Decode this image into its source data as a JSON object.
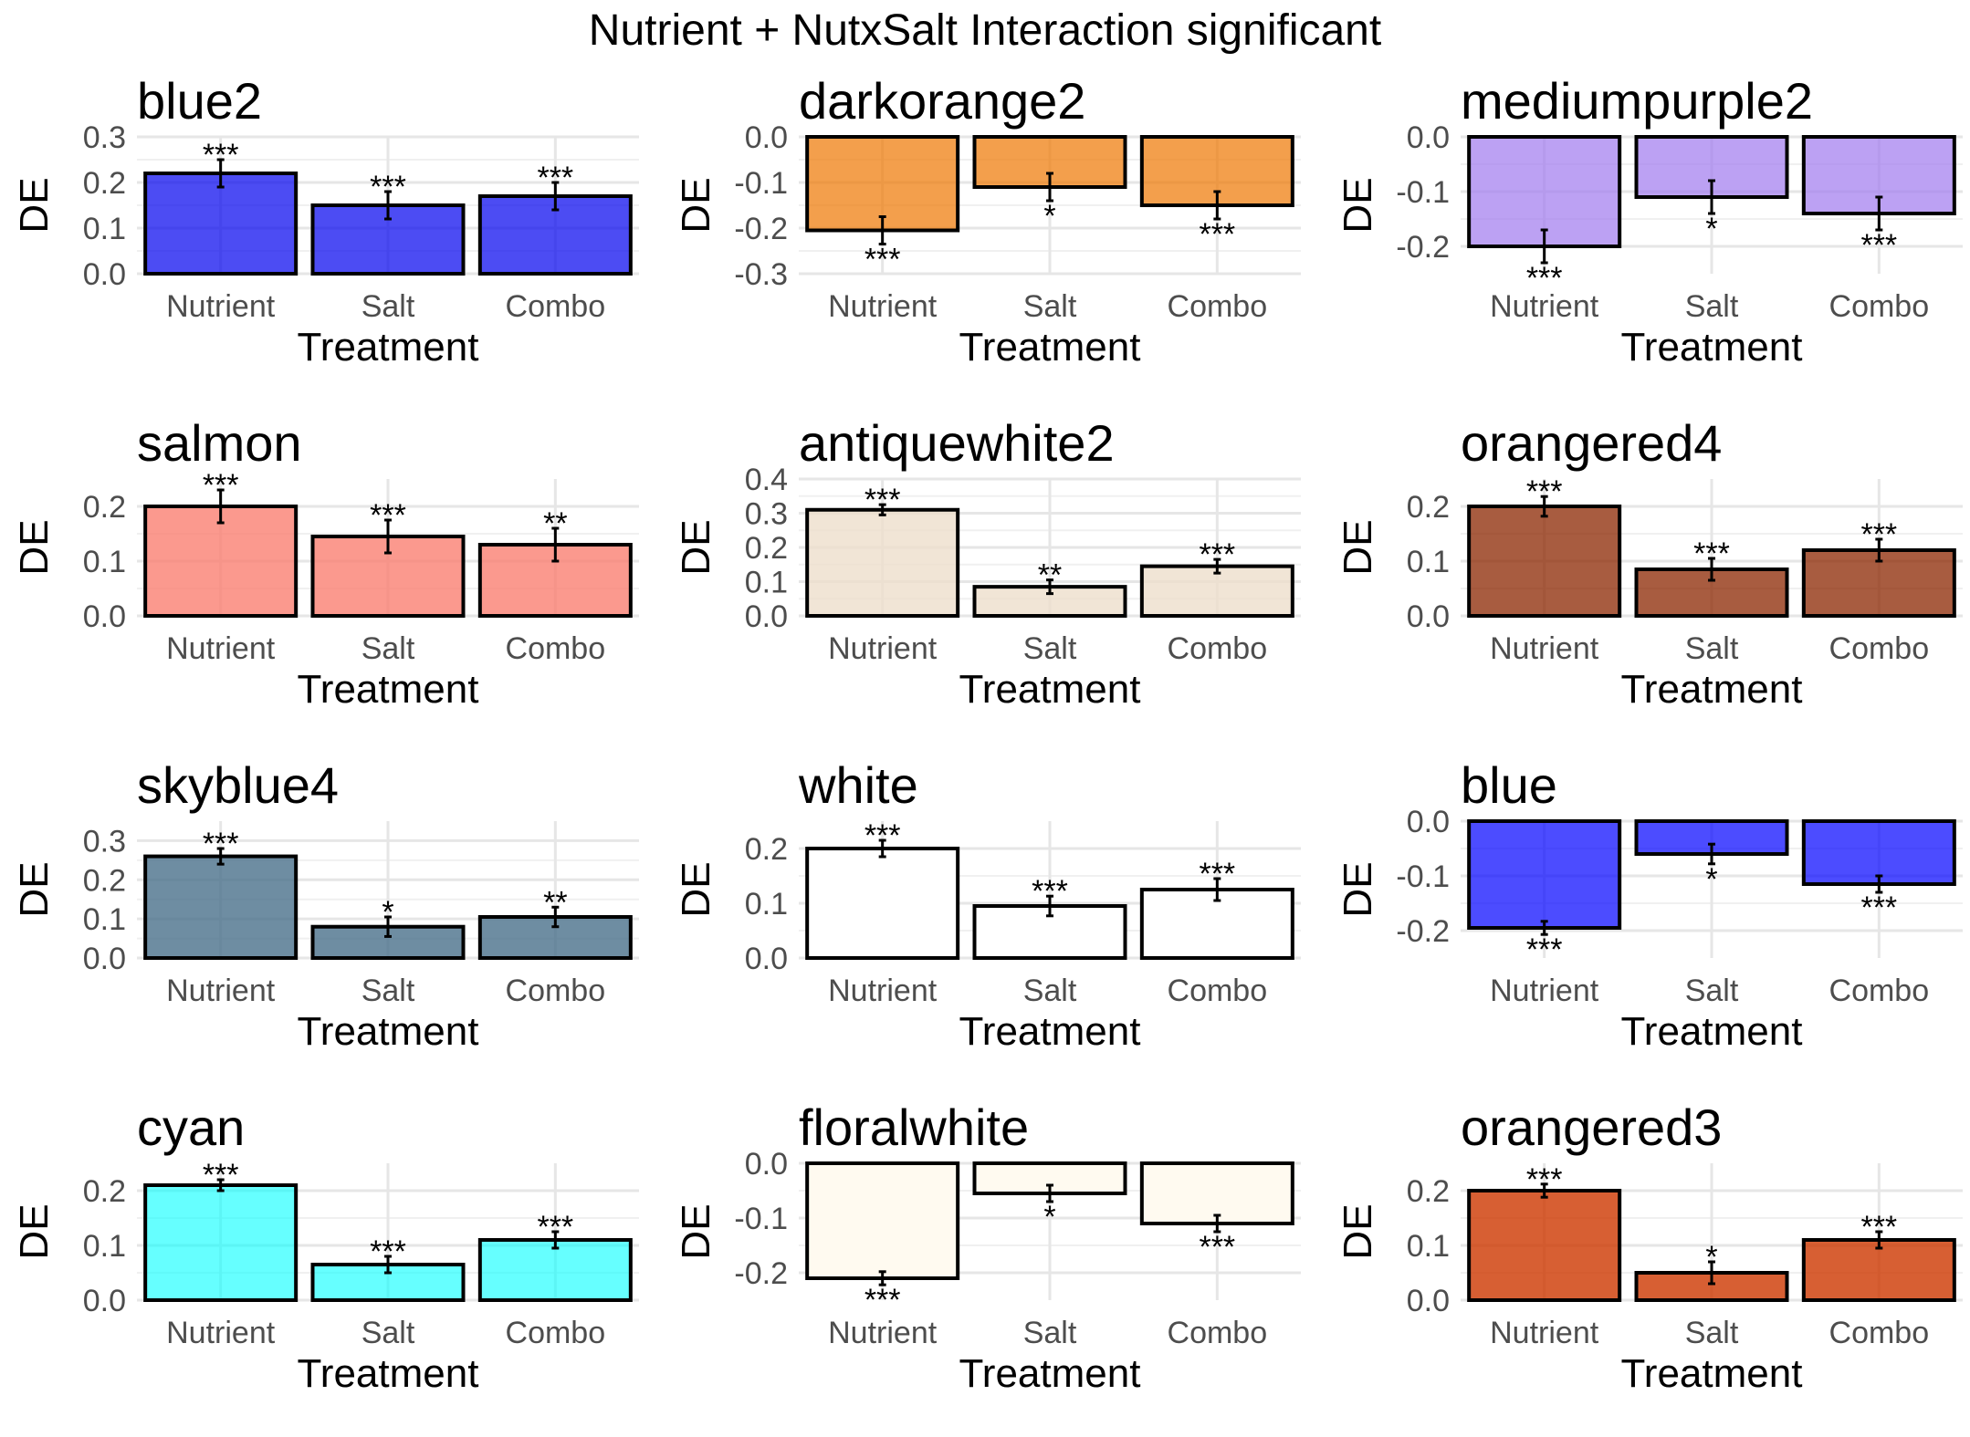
{
  "figure": {
    "title": "Nutrient + NutxSalt Interaction significant"
  },
  "chart_data": [
    {
      "type": "bar",
      "title": "blue2",
      "color": "#0000EE",
      "alpha": 0.7,
      "categories": [
        "Nutrient",
        "Salt",
        "Combo"
      ],
      "values": [
        0.22,
        0.15,
        0.17
      ],
      "errors": [
        0.03,
        0.03,
        0.03
      ],
      "significance": [
        "***",
        "***",
        "***"
      ],
      "xlabel": "Treatment",
      "ylabel": "DE",
      "ylim": [
        0,
        0.3
      ],
      "ticks": [
        0,
        0.1,
        0.2,
        0.3
      ],
      "tick_labels": [
        "0.0",
        "0.1",
        "0.2",
        "0.3"
      ]
    },
    {
      "type": "bar",
      "title": "darkorange2",
      "color": "#EE7600",
      "alpha": 0.7,
      "categories": [
        "Nutrient",
        "Salt",
        "Combo"
      ],
      "values": [
        -0.205,
        -0.11,
        -0.15
      ],
      "errors": [
        0.03,
        0.03,
        0.03
      ],
      "significance": [
        "***",
        "*",
        "***"
      ],
      "xlabel": "Treatment",
      "ylabel": "DE",
      "ylim": [
        -0.3,
        0.0
      ],
      "ticks": [
        0,
        -0.1,
        -0.2,
        -0.3
      ],
      "tick_labels": [
        "0.0",
        "-0.1",
        "-0.2",
        "-0.3"
      ]
    },
    {
      "type": "bar",
      "title": "mediumpurple2",
      "color": "#9F79EE",
      "alpha": 0.7,
      "categories": [
        "Nutrient",
        "Salt",
        "Combo"
      ],
      "values": [
        -0.2,
        -0.11,
        -0.14
      ],
      "errors": [
        0.03,
        0.03,
        0.03
      ],
      "significance": [
        "***",
        "*",
        "***"
      ],
      "xlabel": "Treatment",
      "ylabel": "DE",
      "ylim": [
        -0.25,
        0.0
      ],
      "ticks": [
        0,
        -0.1,
        -0.2
      ],
      "tick_labels": [
        "0.0",
        "-0.1",
        "-0.2"
      ]
    },
    {
      "type": "bar",
      "title": "salmon",
      "color": "#FA8072",
      "alpha": 0.8,
      "categories": [
        "Nutrient",
        "Salt",
        "Combo"
      ],
      "values": [
        0.2,
        0.145,
        0.13
      ],
      "errors": [
        0.03,
        0.03,
        0.03
      ],
      "significance": [
        "***",
        "***",
        "**"
      ],
      "xlabel": "Treatment",
      "ylabel": "DE",
      "ylim": [
        0,
        0.25
      ],
      "ticks": [
        0,
        0.1,
        0.2
      ],
      "tick_labels": [
        "0.0",
        "0.1",
        "0.2"
      ]
    },
    {
      "type": "bar",
      "title": "antiquewhite2",
      "color": "#EEDFCC",
      "alpha": 0.8,
      "categories": [
        "Nutrient",
        "Salt",
        "Combo"
      ],
      "values": [
        0.31,
        0.085,
        0.145
      ],
      "errors": [
        0.015,
        0.02,
        0.02
      ],
      "significance": [
        "***",
        "**",
        "***"
      ],
      "xlabel": "Treatment",
      "ylabel": "DE",
      "ylim": [
        0,
        0.4
      ],
      "ticks": [
        0,
        0.1,
        0.2,
        0.3,
        0.4
      ],
      "tick_labels": [
        "0.0",
        "0.1",
        "0.2",
        "0.3",
        "0.4"
      ]
    },
    {
      "type": "bar",
      "title": "orangered4",
      "color": "#8B2500",
      "alpha": 0.75,
      "categories": [
        "Nutrient",
        "Salt",
        "Combo"
      ],
      "values": [
        0.2,
        0.085,
        0.12
      ],
      "errors": [
        0.018,
        0.02,
        0.02
      ],
      "significance": [
        "***",
        "***",
        "***"
      ],
      "xlabel": "Treatment",
      "ylabel": "DE",
      "ylim": [
        0,
        0.25
      ],
      "ticks": [
        0,
        0.1,
        0.2
      ],
      "tick_labels": [
        "0.0",
        "0.1",
        "0.2"
      ]
    },
    {
      "type": "bar",
      "title": "skyblue4",
      "color": "#4A708B",
      "alpha": 0.8,
      "categories": [
        "Nutrient",
        "Salt",
        "Combo"
      ],
      "values": [
        0.26,
        0.08,
        0.105
      ],
      "errors": [
        0.02,
        0.025,
        0.025
      ],
      "significance": [
        "***",
        "*",
        "**"
      ],
      "xlabel": "Treatment",
      "ylabel": "DE",
      "ylim": [
        0,
        0.35
      ],
      "ticks": [
        0,
        0.1,
        0.2,
        0.3
      ],
      "tick_labels": [
        "0.0",
        "0.1",
        "0.2",
        "0.3"
      ]
    },
    {
      "type": "bar",
      "title": "white",
      "color": "#FFFFFF",
      "alpha": 1,
      "categories": [
        "Nutrient",
        "Salt",
        "Combo"
      ],
      "values": [
        0.2,
        0.095,
        0.125
      ],
      "errors": [
        0.015,
        0.018,
        0.02
      ],
      "significance": [
        "***",
        "***",
        "***"
      ],
      "xlabel": "Treatment",
      "ylabel": "DE",
      "ylim": [
        0,
        0.25
      ],
      "ticks": [
        0,
        0.1,
        0.2
      ],
      "tick_labels": [
        "0.0",
        "0.1",
        "0.2"
      ]
    },
    {
      "type": "bar",
      "title": "blue",
      "color": "#0000FF",
      "alpha": 0.7,
      "categories": [
        "Nutrient",
        "Salt",
        "Combo"
      ],
      "values": [
        -0.195,
        -0.06,
        -0.115
      ],
      "errors": [
        0.012,
        0.018,
        0.015
      ],
      "significance": [
        "***",
        "*",
        "***"
      ],
      "xlabel": "Treatment",
      "ylabel": "DE",
      "ylim": [
        -0.25,
        0.0
      ],
      "ticks": [
        0,
        -0.1,
        -0.2
      ],
      "tick_labels": [
        "0.0",
        "-0.1",
        "-0.2"
      ]
    },
    {
      "type": "bar",
      "title": "cyan",
      "color": "#00FFFF",
      "alpha": 0.6,
      "categories": [
        "Nutrient",
        "Salt",
        "Combo"
      ],
      "values": [
        0.21,
        0.065,
        0.11
      ],
      "errors": [
        0.01,
        0.015,
        0.015
      ],
      "significance": [
        "***",
        "***",
        "***"
      ],
      "xlabel": "Treatment",
      "ylabel": "DE",
      "ylim": [
        0,
        0.25
      ],
      "ticks": [
        0,
        0.1,
        0.2
      ],
      "tick_labels": [
        "0.0",
        "0.1",
        "0.2"
      ]
    },
    {
      "type": "bar",
      "title": "floralwhite",
      "color": "#FFFAF0",
      "alpha": 1,
      "categories": [
        "Nutrient",
        "Salt",
        "Combo"
      ],
      "values": [
        -0.21,
        -0.055,
        -0.11
      ],
      "errors": [
        0.012,
        0.015,
        0.015
      ],
      "significance": [
        "***",
        "*",
        "***"
      ],
      "xlabel": "Treatment",
      "ylabel": "DE",
      "ylim": [
        -0.25,
        0.0
      ],
      "ticks": [
        0,
        -0.1,
        -0.2
      ],
      "tick_labels": [
        "0.0",
        "-0.1",
        "-0.2"
      ]
    },
    {
      "type": "bar",
      "title": "orangered3",
      "color": "#CD3700",
      "alpha": 0.8,
      "categories": [
        "Nutrient",
        "Salt",
        "Combo"
      ],
      "values": [
        0.2,
        0.05,
        0.11
      ],
      "errors": [
        0.012,
        0.02,
        0.015
      ],
      "significance": [
        "***",
        "*",
        "***"
      ],
      "xlabel": "Treatment",
      "ylabel": "DE",
      "ylim": [
        0,
        0.25
      ],
      "ticks": [
        0,
        0.1,
        0.2
      ],
      "tick_labels": [
        "0.0",
        "0.1",
        "0.2"
      ]
    }
  ]
}
